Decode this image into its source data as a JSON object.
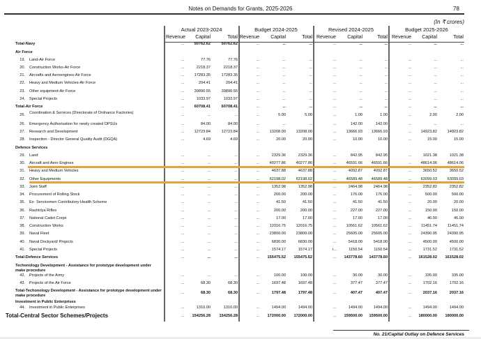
{
  "header": {
    "title": "Notes on Demands for Grants, 2025-2026",
    "page_number": "78",
    "units": "(In ₹ crores)"
  },
  "column_groups": [
    "Actual 2023-2024",
    "Budget 2024-2025",
    "Revised 2024-2025",
    "Budget 2025-2026"
  ],
  "sub_columns": [
    "Revenue",
    "Capital",
    "Total"
  ],
  "highlight_color": "#e8a23a",
  "rows": [
    {
      "type": "total",
      "num": "",
      "label": "Total-Navy",
      "values": [
        "...",
        "50762.62",
        "50762.62",
        "...",
        "...",
        "...",
        "...",
        "...",
        "...",
        "...",
        "...",
        "..."
      ]
    },
    {
      "type": "section",
      "num": "",
      "label": "Air Force",
      "values": []
    },
    {
      "type": "item",
      "num": "19.",
      "label": "Land-Air Force",
      "values": [
        "...",
        "77.76",
        "77.76",
        "...",
        "...",
        "...",
        "...",
        "...",
        "...",
        "...",
        "...",
        "..."
      ]
    },
    {
      "type": "item",
      "num": "20.",
      "label": "Construction Works-Air Force",
      "values": [
        "...",
        "2218.37",
        "2218.37",
        "...",
        "...",
        "...",
        "...",
        "...",
        "...",
        "...",
        "...",
        "..."
      ]
    },
    {
      "type": "item",
      "num": "21.",
      "label": "Aircrafts and Aeroengines-Air Force",
      "values": [
        "...",
        "17283.35",
        "17283.35",
        "...",
        "...",
        "...",
        "...",
        "...",
        "...",
        "...",
        "...",
        "..."
      ]
    },
    {
      "type": "item",
      "num": "22.",
      "label": "Heavy and Medium Vehicles-Air Force",
      "values": [
        "...",
        "204.41",
        "204.41",
        "...",
        "...",
        "...",
        "...",
        "...",
        "...",
        "...",
        "...",
        "..."
      ]
    },
    {
      "type": "item",
      "num": "23.",
      "label": "Other equipment-Air Force",
      "values": [
        "...",
        "39890.55",
        "39890.55",
        "...",
        "...",
        "...",
        "...",
        "...",
        "...",
        "...",
        "...",
        "..."
      ]
    },
    {
      "type": "item",
      "num": "24.",
      "label": "Special Projects",
      "values": [
        "...",
        "1033.97",
        "1033.97",
        "...",
        "...",
        "...",
        "...",
        "...",
        "...",
        "...",
        "...",
        "..."
      ]
    },
    {
      "type": "total",
      "num": "",
      "label": "Total-Air Force",
      "values": [
        "...",
        "60708.41",
        "60708.41",
        "...",
        "...",
        "...",
        "...",
        "...",
        "...",
        "...",
        "...",
        "..."
      ]
    },
    {
      "type": "item",
      "num": "25.",
      "label": "Coordination & Services (Directorate of Ordnance Factories)",
      "values": [
        "...",
        "...",
        "...",
        "...",
        "5.00",
        "5.00",
        "...",
        "1.00",
        "1.00",
        "...",
        "2.00",
        "2.00"
      ]
    },
    {
      "type": "item",
      "num": "26.",
      "label": "Emergency Authorisation for newly created DPSUs",
      "values": [
        "...",
        "84.00",
        "84.00",
        "...",
        "...",
        "...",
        "...",
        "142.00",
        "142.00",
        "...",
        "...",
        "..."
      ]
    },
    {
      "type": "item",
      "num": "27.",
      "label": "Research  and Development",
      "values": [
        "...",
        "12723.84",
        "12723.84",
        "...",
        "13208.00",
        "13208.00",
        "...",
        "13666.93",
        "13666.93",
        "...",
        "14923.82",
        "14923.82"
      ]
    },
    {
      "type": "item",
      "num": "28.",
      "label": "Inspection - Director General Quality Audit (DGQA)",
      "values": [
        "...",
        "4.69",
        "4.69",
        "...",
        "20.00",
        "20.00",
        "...",
        "10.00",
        "10.00",
        "...",
        "15.00",
        "15.00"
      ]
    },
    {
      "type": "section",
      "num": "",
      "label": "Defence Services",
      "values": []
    },
    {
      "type": "item",
      "num": "29.",
      "label": "Land",
      "values": [
        "...",
        "...",
        "...",
        "...",
        "2329.36",
        "2329.36",
        "...",
        "842.95",
        "842.95",
        "...",
        "1021.38",
        "1021.38"
      ]
    },
    {
      "type": "item",
      "num": "30.",
      "label": "Aircraft and Aero Engines",
      "values": [
        "...",
        "...",
        "...",
        "...",
        "40277.86",
        "40277.86",
        "...",
        "46591.66",
        "46591.66",
        "...",
        "48614.06",
        "48614.06"
      ]
    },
    {
      "type": "item",
      "num": "31.",
      "label": "Heavy and Medium Vehicles",
      "values": [
        "...",
        "...",
        "...",
        "...",
        "4637.88",
        "4637.88",
        "...",
        "4092.87",
        "4092.87",
        "...",
        "3650.52",
        "3650.52"
      ]
    },
    {
      "type": "item",
      "num": "32.",
      "label": "Other Equipments",
      "values": [
        "...",
        "...",
        "...",
        "...",
        "62198.02",
        "62198.02",
        "...",
        "46589.48",
        "46589.48",
        "...",
        "63099.03",
        "63099.03"
      ]
    },
    {
      "type": "item",
      "num": "33.",
      "label": "Joint Staff",
      "values": [
        "...",
        "...",
        "...",
        "...",
        "1352.98",
        "1352.98",
        "...",
        "2464.98",
        "2464.98",
        "...",
        "2352.82",
        "2352.82"
      ]
    },
    {
      "type": "item",
      "num": "34.",
      "label": "Procurement of Rolling Stock",
      "values": [
        "...",
        "...",
        "...",
        "...",
        "200.00",
        "200.00",
        "...",
        "176.00",
        "176.00",
        "...",
        "500.00",
        "500.00"
      ]
    },
    {
      "type": "item",
      "num": "35.",
      "label": "Ex- Servicemen Contributory Health Scheme",
      "values": [
        "...",
        "...",
        "...",
        "...",
        "41.50",
        "41.50",
        "...",
        "41.50",
        "41.50",
        "...",
        "20.00",
        "20.00"
      ]
    },
    {
      "type": "item",
      "num": "36.",
      "label": "Rashtriya Rifles",
      "values": [
        "...",
        "...",
        "...",
        "...",
        "200.00",
        "200.00",
        "...",
        "227.00",
        "227.00",
        "...",
        "150.00",
        "150.00"
      ]
    },
    {
      "type": "item",
      "num": "37.",
      "label": "National Cadet Corps",
      "values": [
        "...",
        "...",
        "...",
        "...",
        "17.00",
        "17.00",
        "...",
        "17.00",
        "17.00",
        "...",
        "46.00",
        "46.00"
      ]
    },
    {
      "type": "item",
      "num": "38.",
      "label": "Construction Works",
      "values": [
        "...",
        "...",
        "...",
        "...",
        "12016.75",
        "12016.75",
        "...",
        "10561.62",
        "10561.62",
        "...",
        "11451.74",
        "11451.74"
      ]
    },
    {
      "type": "item",
      "num": "39.",
      "label": "Naval Fleet",
      "values": [
        "...",
        "...",
        "...",
        "...",
        "23800.00",
        "23800.00",
        "...",
        "25605.00",
        "25605.00",
        "...",
        "24390.95",
        "24390.95"
      ]
    },
    {
      "type": "item",
      "num": "40.",
      "label": "Naval Dockyard/ Projects",
      "values": [
        "...",
        "...",
        "...",
        "...",
        "6830.00",
        "6830.00",
        "...",
        "5418.00",
        "5418.00",
        "...",
        "4500.00",
        "4500.00"
      ]
    },
    {
      "type": "item",
      "num": "41.",
      "label": "Special Projects",
      "values": [
        "...",
        "...",
        "...",
        "...",
        "1574.17",
        "1574.17",
        "i...",
        "1150.54",
        "1150.54",
        "...",
        "1731.52",
        "1731.52"
      ]
    },
    {
      "type": "total",
      "num": "",
      "label": "Total-Defence Services",
      "values": [
        "...",
        "...",
        "...",
        "...",
        "155475.52",
        "155475.52",
        "...",
        "143778.60",
        "143778.60",
        "...",
        "161528.02",
        "161528.02"
      ]
    },
    {
      "type": "section",
      "num": "",
      "label": "Techonology Development - Assistance for prototype development under make procedure",
      "values": []
    },
    {
      "type": "item",
      "num": "42.",
      "label": "Projects of the Army",
      "values": [
        "...",
        "...",
        "...",
        "...",
        "100.00",
        "100.00",
        "...",
        "30.00",
        "30.00",
        "...",
        "335.00",
        "335.00"
      ]
    },
    {
      "type": "item",
      "num": "43.",
      "label": "Projects of the Air Force",
      "values": [
        "...",
        "68.30",
        "68.30",
        "...",
        "1697.48",
        "1697.48",
        "...",
        "377.47",
        "377.47",
        "...",
        "1702.16",
        "1702.16"
      ]
    },
    {
      "type": "total",
      "num": "",
      "label": "Total-Techonology Development - Assistance for prototype development under make procedure",
      "values": [
        "...",
        "68.30",
        "68.30",
        "...",
        "1797.48",
        "1797.48",
        "...",
        "407.47",
        "407.47",
        "...",
        "2037.16",
        "2037.16"
      ]
    },
    {
      "type": "section",
      "num": "",
      "label": "Investment in Public Enterprises",
      "values": []
    },
    {
      "type": "item",
      "num": "44.",
      "label": "Investment in Public Enterprises",
      "values": [
        "...",
        "1310.00",
        "1310.00",
        "...",
        "1494.00",
        "1494.00",
        "...",
        "1494.00",
        "1494.00",
        "...",
        "1494.00",
        "1494.00"
      ]
    },
    {
      "type": "grand",
      "num": "",
      "label": "Total-Central Sector Schemes/Projects",
      "values": [
        "...",
        "154256.28",
        "154256.28",
        "...",
        "172000.00",
        "172000.00",
        "...",
        "159500.00",
        "159500.00",
        "...",
        "180000.00",
        "180000.00"
      ]
    }
  ],
  "footer": {
    "text": "No. 21/Capital Outlay on Defence Services"
  }
}
